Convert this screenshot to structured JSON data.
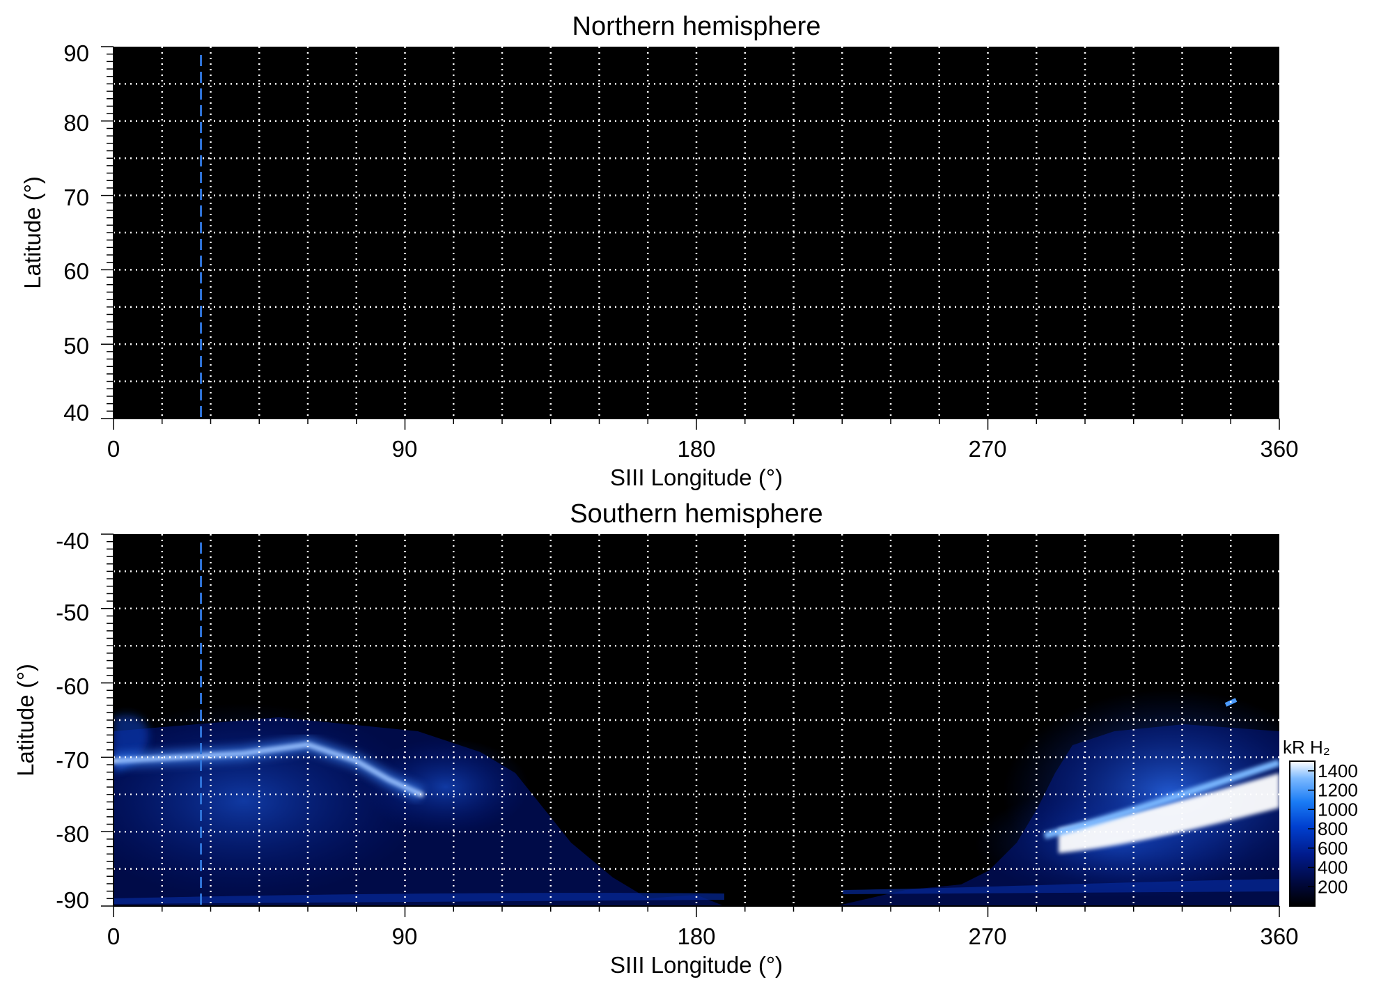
{
  "chart_data": [
    {
      "type": "heatmap",
      "title": "Northern hemisphere",
      "xlabel": "SIII Longitude (°)",
      "ylabel": "Latitude (°)",
      "xlim": [
        0,
        360
      ],
      "ylim": [
        40,
        90
      ],
      "xticks": [
        "0",
        "90",
        "180",
        "270",
        "360"
      ],
      "yticks": [
        "40",
        "50",
        "60",
        "70",
        "80",
        "90"
      ],
      "grid": true,
      "grid_x_step": 15,
      "grid_y_step": 5,
      "marker_longitude": 27,
      "emission": "none (black map)"
    },
    {
      "type": "heatmap",
      "title": "Southern hemisphere",
      "xlabel": "SIII Longitude (°)",
      "ylabel": "Latitude (°)",
      "xlim": [
        0,
        360
      ],
      "ylim": [
        -90,
        -40
      ],
      "xticks": [
        "0",
        "90",
        "180",
        "270",
        "360"
      ],
      "yticks": [
        "-40",
        "-50",
        "-60",
        "-70",
        "-80",
        "-90"
      ],
      "grid": true,
      "grid_x_step": 15,
      "grid_y_step": 5,
      "marker_longitude": 27,
      "main_oval": {
        "segment_a": [
          [
            0,
            -70.5
          ],
          [
            20,
            -70
          ],
          [
            40,
            -69.5
          ],
          [
            60,
            -68.3
          ],
          [
            75,
            -70.5
          ],
          [
            85,
            -73
          ],
          [
            95,
            -75
          ]
        ],
        "segment_b": [
          [
            290,
            -80.5
          ],
          [
            310,
            -79
          ],
          [
            330,
            -77
          ],
          [
            350,
            -75
          ],
          [
            360,
            -73.5
          ]
        ]
      },
      "colorbar": {
        "title": "kR H₂",
        "min": 0,
        "max": 1500,
        "ticks": [
          "200",
          "400",
          "600",
          "800",
          "1000",
          "1200",
          "1400"
        ]
      }
    }
  ],
  "colors": {
    "background": "#000000",
    "grid": "#ffffff",
    "marker": "#2f73d8",
    "colormap": [
      "#000000",
      "#00083a",
      "#001a8a",
      "#0040d0",
      "#1a7cf5",
      "#7ab8ff",
      "#ffffff"
    ]
  }
}
